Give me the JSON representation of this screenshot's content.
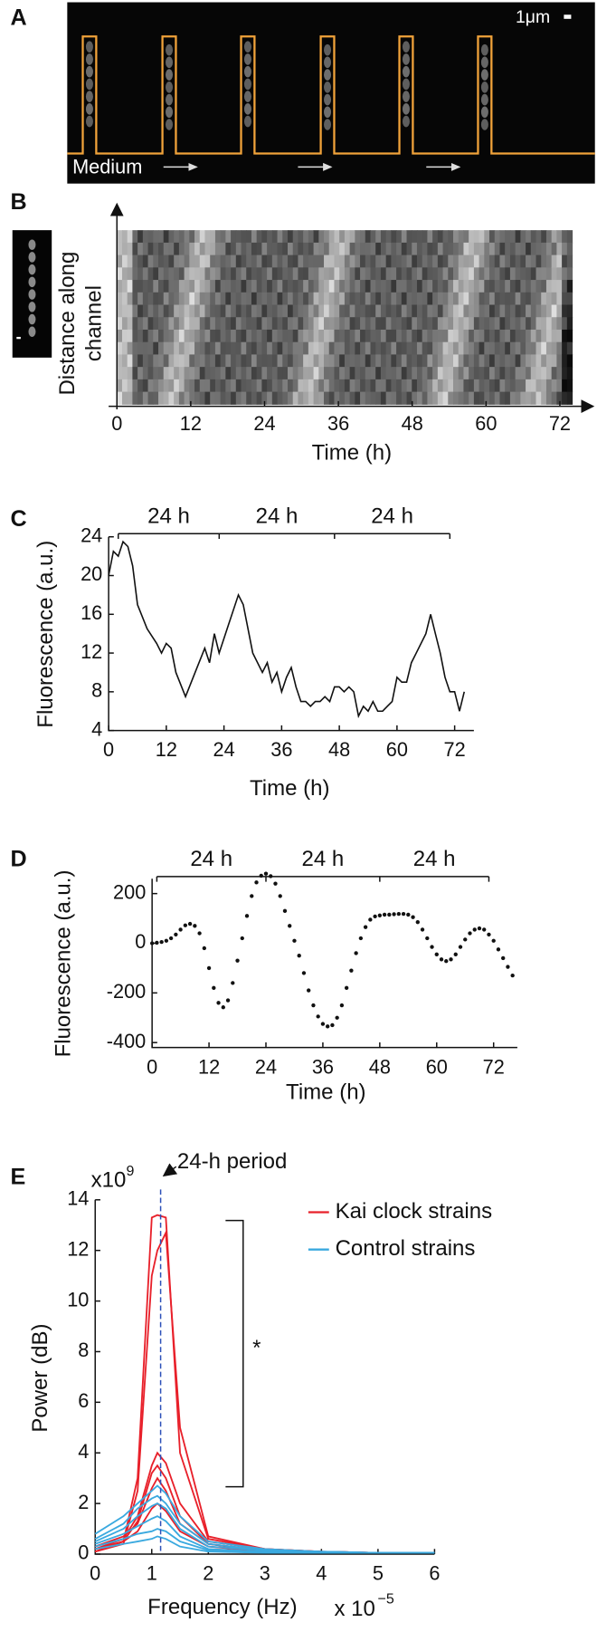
{
  "panels": [
    "A",
    "B",
    "C",
    "D",
    "E"
  ],
  "panel_a": {
    "scale_label": "1μm",
    "medium_label": "Medium"
  },
  "panel_b": {
    "ylabel_lines": [
      "Distance along",
      "channel"
    ],
    "xlabel": "Time (h)",
    "xlim": [
      0,
      74
    ],
    "xticks": [
      0,
      12,
      24,
      36,
      48,
      60,
      72
    ]
  },
  "chart_data": [
    {
      "type": "line",
      "xlabel": "Time (h)",
      "ylabel": "Fluorescence (a.u.)",
      "color": "#111111",
      "xlim": [
        0,
        76
      ],
      "ylim": [
        4,
        24
      ],
      "xticks": [
        0,
        12,
        24,
        36,
        48,
        60,
        72
      ],
      "yticks": [
        4,
        8,
        12,
        16,
        20,
        24
      ],
      "period_labels": [
        "24 h",
        "24 h",
        "24 h"
      ],
      "brackets": [
        2,
        23,
        47,
        71
      ],
      "x": [
        0,
        1,
        2,
        3,
        4,
        5,
        6,
        8,
        10,
        11,
        12,
        13,
        14,
        16,
        18,
        20,
        21,
        22,
        23,
        25,
        27,
        28,
        30,
        32,
        33,
        34,
        35,
        36,
        37,
        38,
        39,
        40,
        41,
        42,
        43,
        44,
        45,
        46,
        47,
        48,
        49,
        50,
        51,
        52,
        53,
        54,
        55,
        56,
        57,
        58,
        59,
        60,
        61,
        62,
        63,
        64,
        66,
        67,
        68,
        69,
        70,
        71,
        72,
        73,
        74
      ],
      "values": [
        20,
        22.5,
        22,
        23.5,
        23,
        21,
        17,
        14.5,
        13,
        12,
        13,
        12.5,
        10,
        7.5,
        10,
        12.5,
        11,
        14,
        12,
        15,
        18,
        17,
        12,
        10,
        11,
        9,
        10,
        8,
        9.5,
        10.5,
        8.5,
        7,
        7,
        6.5,
        7,
        7,
        7.5,
        7,
        8.5,
        8.5,
        8,
        8.5,
        8,
        5.5,
        6.5,
        6,
        7,
        6,
        6,
        6.5,
        7,
        9.5,
        9,
        9,
        11,
        12,
        14,
        16,
        14,
        12,
        9.5,
        8,
        8,
        6,
        8
      ]
    },
    {
      "type": "scatter",
      "xlabel": "Time (h)",
      "ylabel": "Fluorescence (a.u.)",
      "color": "#111111",
      "xlim": [
        0,
        77
      ],
      "ylim": [
        -420,
        260
      ],
      "xticks": [
        0,
        12,
        24,
        36,
        48,
        60,
        72
      ],
      "yticks": [
        -400,
        -200,
        0,
        200
      ],
      "period_labels": [
        "24 h",
        "24 h",
        "24 h"
      ],
      "brackets": [
        1,
        24,
        48,
        71
      ],
      "x": [
        0,
        1,
        2,
        3,
        4,
        5,
        6,
        7,
        8,
        9,
        10,
        11,
        12,
        13,
        14,
        15,
        16,
        17,
        18,
        19,
        20,
        21,
        22,
        23,
        24,
        25,
        26,
        27,
        28,
        29,
        30,
        31,
        32,
        33,
        34,
        35,
        36,
        37,
        38,
        39,
        40,
        41,
        42,
        43,
        44,
        45,
        46,
        47,
        48,
        49,
        50,
        51,
        52,
        53,
        54,
        55,
        56,
        57,
        58,
        59,
        60,
        61,
        62,
        63,
        64,
        65,
        66,
        67,
        68,
        69,
        70,
        71,
        72,
        73,
        74,
        75,
        76
      ],
      "values": [
        0,
        2,
        5,
        10,
        20,
        35,
        55,
        72,
        78,
        70,
        40,
        -20,
        -100,
        -180,
        -240,
        -258,
        -230,
        -160,
        -70,
        20,
        110,
        190,
        245,
        272,
        280,
        270,
        240,
        190,
        130,
        70,
        10,
        -50,
        -120,
        -190,
        -250,
        -295,
        -325,
        -335,
        -330,
        -300,
        -250,
        -180,
        -110,
        -40,
        20,
        65,
        95,
        108,
        112,
        115,
        115,
        117,
        118,
        118,
        115,
        105,
        85,
        55,
        20,
        -15,
        -45,
        -65,
        -72,
        -65,
        -45,
        -15,
        15,
        40,
        55,
        60,
        55,
        35,
        10,
        -25,
        -60,
        -95,
        -130
      ]
    },
    {
      "type": "line",
      "xlabel": "Frequency (Hz)",
      "ylabel": "Power (dB)",
      "x_multiplier": "x 10",
      "x_exponent": "−5",
      "y_multiplier": "x10",
      "y_exponent": "9",
      "annotation": "24-h period",
      "period_line_x": 1.157,
      "significance": "*",
      "legend": "top-right",
      "xlim": [
        0,
        6
      ],
      "ylim": [
        0,
        14
      ],
      "xticks": [
        0,
        1,
        2,
        3,
        4,
        5,
        6
      ],
      "yticks": [
        0,
        2,
        4,
        6,
        8,
        10,
        12,
        14
      ],
      "x": [
        0,
        0.5,
        0.75,
        1,
        1.1,
        1.25,
        1.5,
        2,
        3,
        4,
        5,
        6
      ],
      "series": [
        {
          "name": "Kai clock strains",
          "color": "#e8202a",
          "values": [
            [
              0.1,
              0.5,
              3,
              13.3,
              13.4,
              13.3,
              4,
              0.6,
              0.2,
              0.1,
              0.05,
              0.05
            ],
            [
              0.1,
              0.4,
              2.5,
              11,
              12,
              12.7,
              5,
              0.7,
              0.2,
              0.1,
              0.05,
              0.05
            ],
            [
              0.2,
              0.6,
              1.5,
              3.5,
              4,
              3.6,
              2,
              0.5,
              0.2,
              0.1,
              0.05,
              0.05
            ],
            [
              0.1,
              0.5,
              1.3,
              3.2,
              3.5,
              3,
              1.5,
              0.4,
              0.15,
              0.1,
              0.05,
              0.05
            ],
            [
              0.3,
              0.7,
              1.2,
              2.6,
              3,
              2.5,
              1.2,
              0.4,
              0.1,
              0.05,
              0.05,
              0.05
            ],
            [
              0.2,
              0.5,
              0.9,
              1.8,
              2,
              1.7,
              0.9,
              0.3,
              0.1,
              0.05,
              0.05,
              0.05
            ]
          ]
        },
        {
          "name": "Control strains",
          "color": "#3aa9df",
          "values": [
            [
              0.8,
              1.5,
              2,
              2.5,
              2.7,
              2.4,
              1.5,
              0.5,
              0.2,
              0.1,
              0.05,
              0.05
            ],
            [
              0.6,
              1.2,
              1.8,
              2.2,
              2.3,
              2,
              1.2,
              0.4,
              0.15,
              0.1,
              0.05,
              0.05
            ],
            [
              0.5,
              1,
              1.5,
              1.9,
              2,
              1.8,
              1,
              0.3,
              0.15,
              0.1,
              0.05,
              0.05
            ],
            [
              0.4,
              0.8,
              1.1,
              1.4,
              1.5,
              1.3,
              0.7,
              0.2,
              0.1,
              0.05,
              0.05,
              0.05
            ],
            [
              0.3,
              0.6,
              0.8,
              0.9,
              1,
              0.9,
              0.5,
              0.15,
              0.1,
              0.05,
              0.05,
              0.05
            ],
            [
              0.2,
              0.4,
              0.5,
              0.6,
              0.7,
              0.6,
              0.3,
              0.1,
              0.05,
              0.05,
              0.05,
              0.05
            ]
          ]
        }
      ]
    }
  ]
}
